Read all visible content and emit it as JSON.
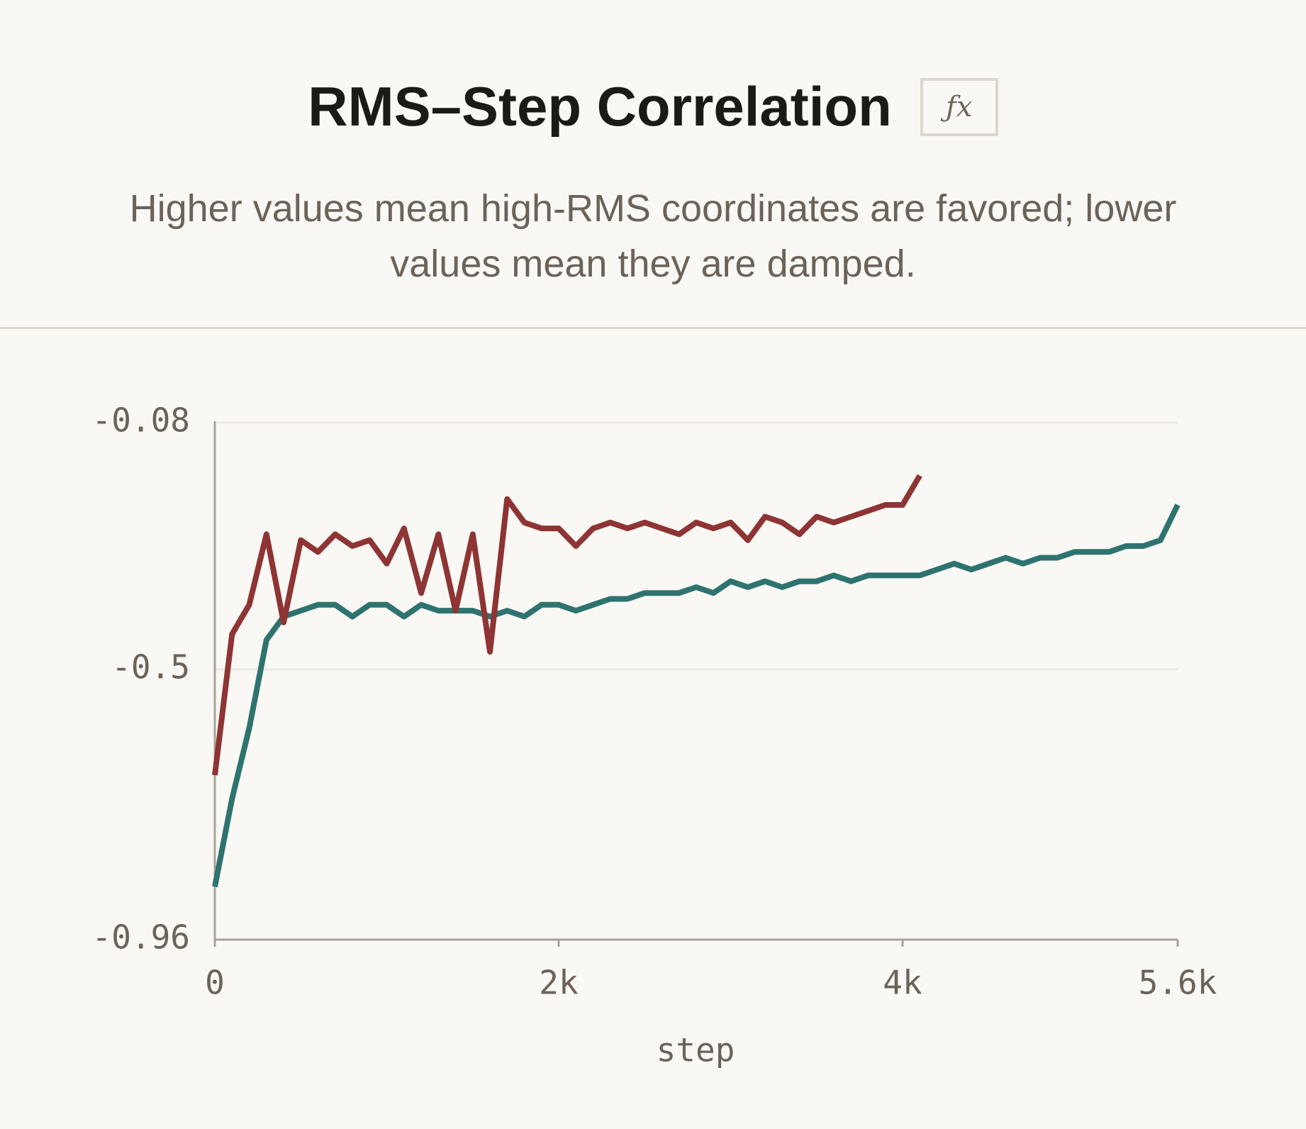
{
  "chart_data": {
    "type": "line",
    "title": "RMS–Step Correlation",
    "formula_badge": "ƒx",
    "subtitle": "Higher values mean high-RMS coordinates are favored; lower values mean they are damped.",
    "x_label": "step",
    "x": [
      0,
      100,
      200,
      300,
      400,
      500,
      600,
      700,
      800,
      900,
      1000,
      1100,
      1200,
      1300,
      1400,
      1500,
      1600,
      1700,
      1800,
      1900,
      2000,
      2100,
      2200,
      2300,
      2400,
      2500,
      2600,
      2700,
      2800,
      2900,
      3000,
      3100,
      3200,
      3300,
      3400,
      3500,
      3600,
      3700,
      3800,
      3900,
      4000,
      4100,
      4200,
      4300,
      4400,
      4500,
      4600,
      4700,
      4800,
      4900,
      5000,
      5100,
      5200,
      5300,
      5400,
      5500,
      5600
    ],
    "series": [
      {
        "color": "#2e7370",
        "values": [
          -0.87,
          -0.72,
          -0.6,
          -0.45,
          -0.41,
          -0.4,
          -0.39,
          -0.39,
          -0.41,
          -0.39,
          -0.39,
          -0.41,
          -0.39,
          -0.4,
          -0.4,
          -0.4,
          -0.41,
          -0.4,
          -0.41,
          -0.39,
          -0.39,
          -0.4,
          -0.39,
          -0.38,
          -0.38,
          -0.37,
          -0.37,
          -0.37,
          -0.36,
          -0.37,
          -0.35,
          -0.36,
          -0.35,
          -0.36,
          -0.35,
          -0.35,
          -0.34,
          -0.35,
          -0.34,
          -0.34,
          -0.34,
          -0.34,
          -0.33,
          -0.32,
          -0.33,
          -0.32,
          -0.31,
          -0.32,
          -0.31,
          -0.31,
          -0.3,
          -0.3,
          -0.3,
          -0.29,
          -0.29,
          -0.28,
          -0.22
        ]
      },
      {
        "color": "#8e3434",
        "values": [
          -0.68,
          -0.44,
          -0.39,
          -0.27,
          -0.42,
          -0.28,
          -0.3,
          -0.27,
          -0.29,
          -0.28,
          -0.32,
          -0.26,
          -0.37,
          -0.27,
          -0.4,
          -0.27,
          -0.47,
          -0.21,
          -0.25,
          -0.26,
          -0.26,
          -0.29,
          -0.26,
          -0.25,
          -0.26,
          -0.25,
          -0.26,
          -0.27,
          -0.25,
          -0.26,
          -0.25,
          -0.28,
          -0.24,
          -0.25,
          -0.27,
          -0.24,
          -0.25,
          -0.24,
          -0.23,
          -0.22,
          -0.22,
          -0.17,
          null,
          null,
          null,
          null,
          null,
          null,
          null,
          null,
          null,
          null,
          null,
          null,
          null,
          null,
          null
        ]
      }
    ],
    "xlim": [
      0,
      5600
    ],
    "xticks": [
      0,
      {
        "value": 2000,
        "label": "2k"
      },
      {
        "value": 4000,
        "label": "4k"
      },
      {
        "value": 5600,
        "label": "5.6k"
      }
    ],
    "ylim": [
      -0.96,
      -0.08
    ],
    "yticks": [
      -0.96,
      -0.5,
      -0.08
    ],
    "grid": true
  }
}
